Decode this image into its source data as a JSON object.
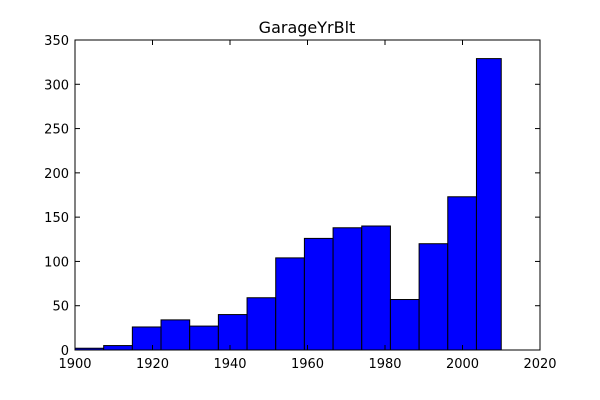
{
  "chart_data": {
    "type": "bar",
    "title": "GarageYrBlt",
    "xlabel": "",
    "ylabel": "",
    "xlim": [
      1900,
      2020
    ],
    "ylim": [
      0,
      350
    ],
    "x_ticks": [
      1900,
      1920,
      1940,
      1960,
      1980,
      2000,
      2020
    ],
    "y_ticks": [
      0,
      50,
      100,
      150,
      200,
      250,
      300,
      350
    ],
    "bin_edges": [
      1900,
      1907.4,
      1914.8,
      1922.2,
      1929.6,
      1937.0,
      1944.4,
      1951.8,
      1959.2,
      1966.6,
      1974.0,
      1981.4,
      1988.8,
      1996.2,
      2003.6,
      2010
    ],
    "counts": [
      2,
      5,
      26,
      34,
      27,
      40,
      59,
      104,
      126,
      138,
      140,
      57,
      120,
      173,
      329
    ],
    "bar_color": "#0000ff",
    "edge_color": "#000000",
    "grid": false
  }
}
